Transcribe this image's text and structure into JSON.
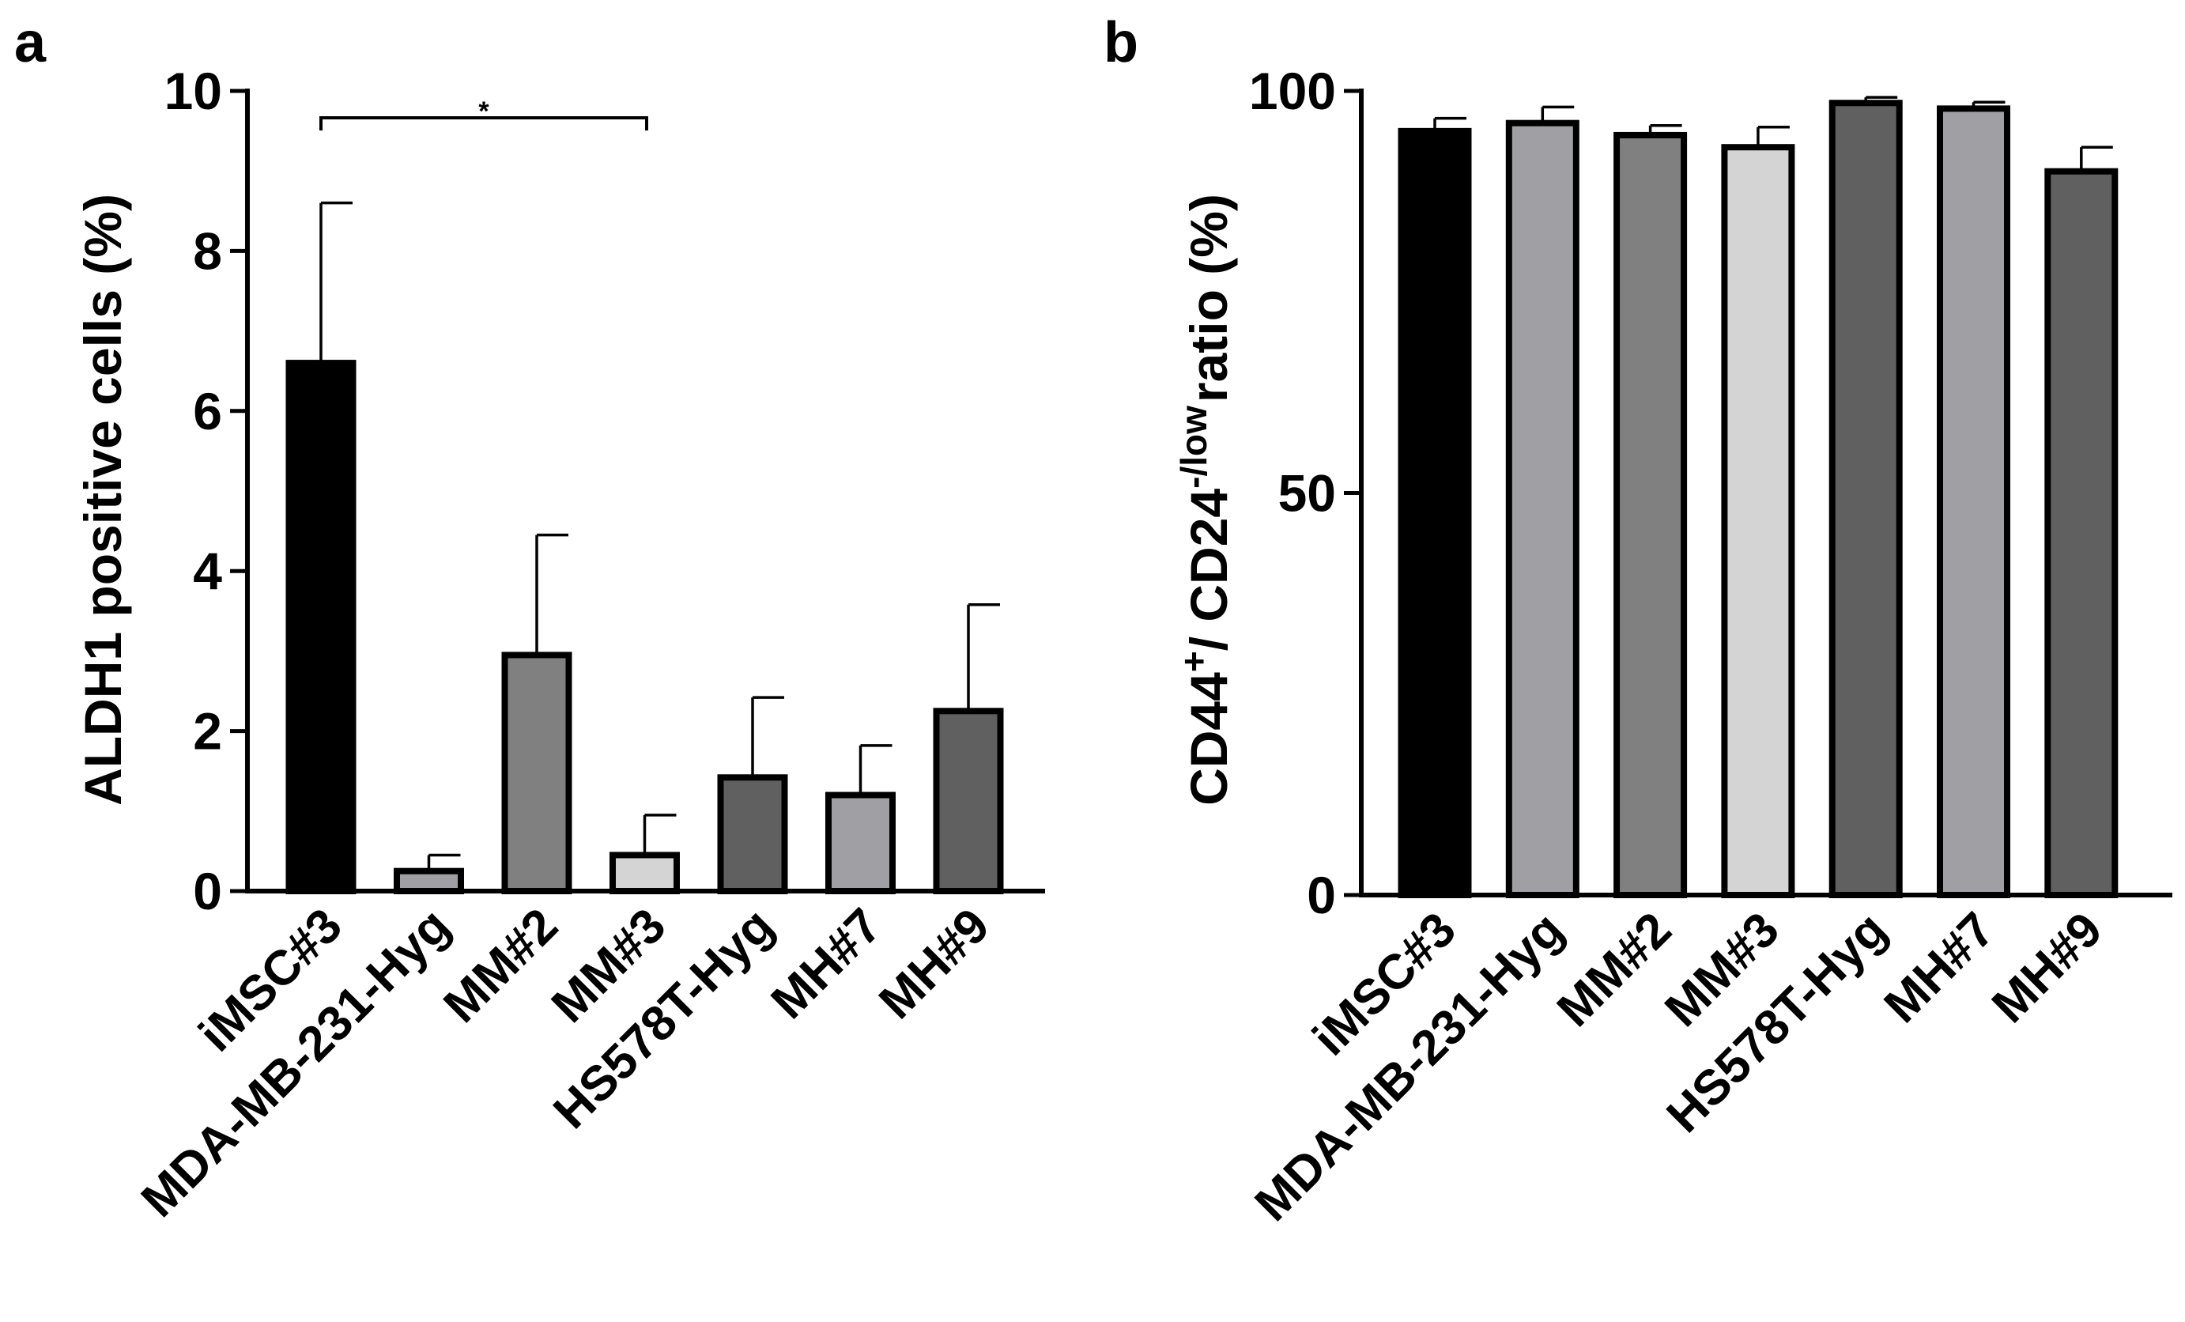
{
  "chart_data": [
    {
      "panel": "a",
      "type": "bar",
      "categories": [
        "iMSC#3",
        "MDA-MB-231-Hyg",
        "MM#2",
        "MM#3",
        "HS578T-Hyg",
        "MH#7",
        "MH#9"
      ],
      "values": [
        6.6,
        0.25,
        2.95,
        0.45,
        1.42,
        1.2,
        2.25
      ],
      "errors": [
        2.0,
        0.2,
        1.5,
        0.5,
        1.0,
        0.62,
        1.33
      ],
      "colors": [
        "#000000",
        "#a0a0a4",
        "#808080",
        "#d4d4d4",
        "#606060",
        "#a0a0a4",
        "#606060"
      ],
      "ylabel": "ALDH1 positive cells (%)",
      "xlabel": "",
      "ylim": [
        0,
        10
      ],
      "yticks": [
        "0",
        "2",
        "4",
        "6",
        "8",
        "10"
      ],
      "significance": {
        "from": "iMSC#3",
        "to": "MM#3",
        "label": "*"
      }
    },
    {
      "panel": "b",
      "type": "bar",
      "categories": [
        "iMSC#3",
        "MDA-MB-231-Hyg",
        "MM#2",
        "MM#3",
        "HS578T-Hyg",
        "MH#7",
        "MH#9"
      ],
      "values": [
        95,
        96,
        94.5,
        93,
        98.5,
        97.8,
        90
      ],
      "errors": [
        1.6,
        2.0,
        1.2,
        2.5,
        0.7,
        0.8,
        3.0
      ],
      "colors": [
        "#000000",
        "#a0a0a4",
        "#808080",
        "#d4d4d4",
        "#606060",
        "#a0a0a4",
        "#606060"
      ],
      "ylabel_parts": [
        "CD44",
        "+",
        "/ CD24",
        "-/low",
        "ratio (%)"
      ],
      "xlabel": "",
      "ylim": [
        0,
        100
      ],
      "yticks": [
        "0",
        "50",
        "100"
      ]
    }
  ]
}
